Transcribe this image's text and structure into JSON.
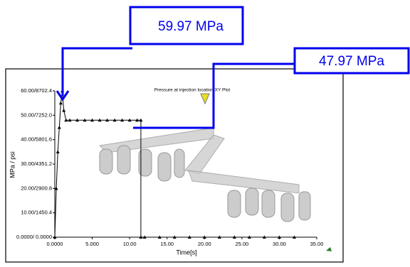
{
  "chart_data": {
    "type": "line",
    "title": "Pressure at injection location:XY Plot",
    "x_label": "Time[s]",
    "y_label": "MPa / psi",
    "x": [
      0,
      0.2,
      0.4,
      0.6,
      0.8,
      1.0,
      1.2,
      1.5,
      2,
      3,
      4,
      5,
      6,
      7,
      8,
      9,
      10,
      11,
      11.5,
      11.5,
      12,
      14,
      16,
      18,
      20,
      22,
      24,
      26,
      28,
      30,
      32
    ],
    "values": [
      0,
      20,
      35,
      45,
      55,
      59.97,
      52,
      48,
      47.97,
      47.97,
      47.97,
      47.97,
      47.97,
      47.97,
      47.97,
      47.97,
      47.97,
      47.97,
      47.97,
      0,
      0,
      0,
      0,
      0,
      0,
      0,
      0,
      0,
      0,
      0,
      0
    ],
    "color": "#000000",
    "xlim": [
      0,
      35
    ],
    "ylim": [
      0,
      60
    ],
    "xticks": [
      {
        "value": 0,
        "label": "0.0000"
      },
      {
        "value": 5,
        "label": "5.000"
      },
      {
        "value": 10,
        "label": "10.00"
      },
      {
        "value": 15,
        "label": "15.00"
      },
      {
        "value": 20,
        "label": "20.00"
      },
      {
        "value": 25,
        "label": "25.00"
      },
      {
        "value": 30,
        "label": "30.00"
      },
      {
        "value": 35,
        "label": "35.00"
      }
    ],
    "yticks": [
      {
        "value": 0,
        "label": "0.0000/ 0.0000"
      },
      {
        "value": 10,
        "label": "10.00/1450.4"
      },
      {
        "value": 20,
        "label": "20.00/2900.8"
      },
      {
        "value": 30,
        "label": "30.00/4351.2"
      },
      {
        "value": 40,
        "label": "40.00/5801.6"
      },
      {
        "value": 50,
        "label": "50.00/7252.0"
      },
      {
        "value": 60,
        "label": "60.00/8702.4"
      }
    ],
    "annotations": [
      {
        "text": "59.97 MPa",
        "color": "#0000ee"
      },
      {
        "text": "47.97 MPa",
        "color": "#0000ee"
      }
    ]
  }
}
